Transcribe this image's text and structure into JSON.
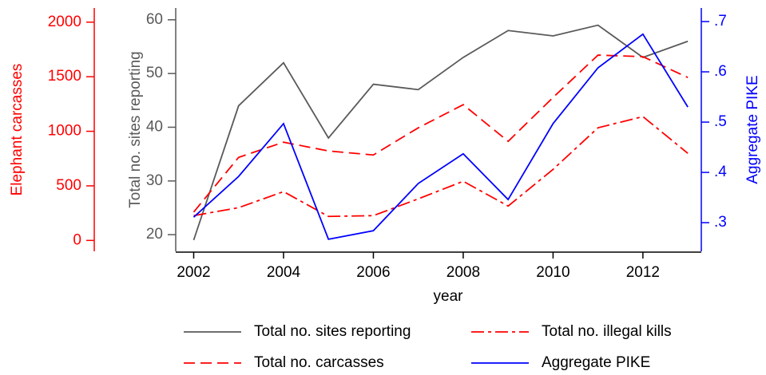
{
  "chart_data": {
    "type": "line",
    "xlabel": "year",
    "ylabel": "Elephant carcasses",
    "y2label": "Total no. sites reporting",
    "y3label": "Aggregate PIKE",
    "ycolor": "#ff0000",
    "y2color": "#595959",
    "y3color": "#0000ff",
    "x": [
      2002,
      2003,
      2004,
      2005,
      2006,
      2007,
      2008,
      2009,
      2010,
      2011,
      2012,
      2013
    ],
    "xlim": [
      2001.6,
      2013.3
    ],
    "xticks": [
      2002,
      2004,
      2006,
      2008,
      2010,
      2012
    ],
    "ylim": [
      -100,
      2130
    ],
    "yticks": [
      0,
      500,
      1000,
      1500,
      2000
    ],
    "y2lim": [
      16.9,
      62.2
    ],
    "y2ticks": [
      20,
      30,
      40,
      50,
      60
    ],
    "y3lim": [
      0.243,
      0.727
    ],
    "y3ticks": [
      {
        "value": 0.3,
        "label": ".3"
      },
      {
        "value": 0.4,
        "label": ".4"
      },
      {
        "value": 0.5,
        "label": ".5"
      },
      {
        "value": 0.6,
        "label": ".6"
      },
      {
        "value": 0.7,
        "label": ".7"
      }
    ],
    "series": [
      {
        "name": "Total no. sites reporting",
        "color": "#595959",
        "style": "solid",
        "axis": "y2",
        "values": [
          19,
          44,
          52,
          38,
          48,
          47,
          53,
          58,
          57,
          59,
          53,
          56
        ]
      },
      {
        "name": "Total no. illegal kills",
        "color": "#ff0000",
        "style": "dashdot",
        "axis": "y",
        "values": [
          227,
          300,
          447,
          220,
          227,
          381,
          542,
          315,
          651,
          1032,
          1135,
          798
        ]
      },
      {
        "name": "Total no. carcasses",
        "color": "#ff0000",
        "style": "dashed",
        "axis": "y",
        "values": [
          260,
          761,
          900,
          820,
          783,
          1032,
          1244,
          908,
          1310,
          1698,
          1684,
          1493
        ]
      },
      {
        "name": "Aggregate PIKE",
        "color": "#0000ff",
        "style": "solid",
        "axis": "y3",
        "values": [
          0.311,
          0.392,
          0.497,
          0.267,
          0.284,
          0.378,
          0.437,
          0.346,
          0.497,
          0.608,
          0.675,
          0.53
        ]
      }
    ]
  }
}
